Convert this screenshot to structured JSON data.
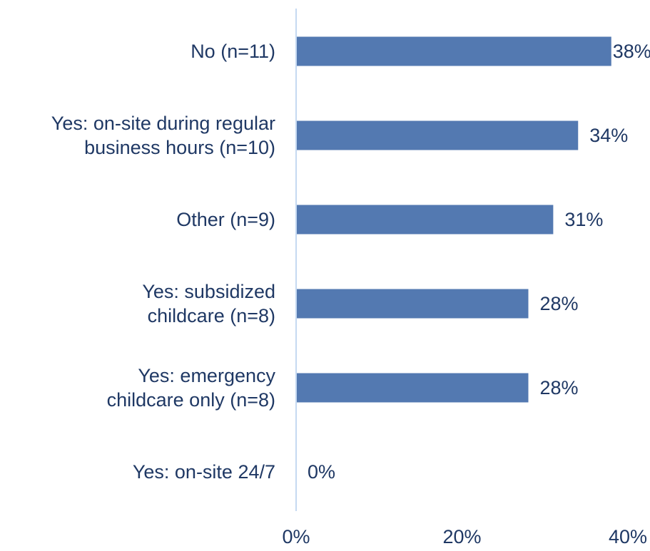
{
  "chart_data": {
    "type": "bar",
    "orientation": "horizontal",
    "categories": [
      [
        "No (n=11)"
      ],
      [
        "Yes: on-site during regular",
        "business hours (n=10)"
      ],
      [
        "Other (n=9)"
      ],
      [
        "Yes: subsidized",
        "childcare (n=8)"
      ],
      [
        "Yes: emergency",
        "childcare only (n=8)"
      ],
      [
        "Yes: on-site 24/7"
      ]
    ],
    "values": [
      38,
      34,
      31,
      28,
      28,
      0
    ],
    "data_labels": [
      "38%",
      "34%",
      "31%",
      "28%",
      "28%",
      "0%"
    ],
    "xlim": [
      0,
      40
    ],
    "x_ticks": [
      0,
      20,
      40
    ],
    "x_tick_labels": [
      "0%",
      "20%",
      "40%"
    ],
    "grid": false,
    "colors": {
      "bar": "#5379b1",
      "axis": "#c5d9f1",
      "text": "#1f3864"
    }
  }
}
